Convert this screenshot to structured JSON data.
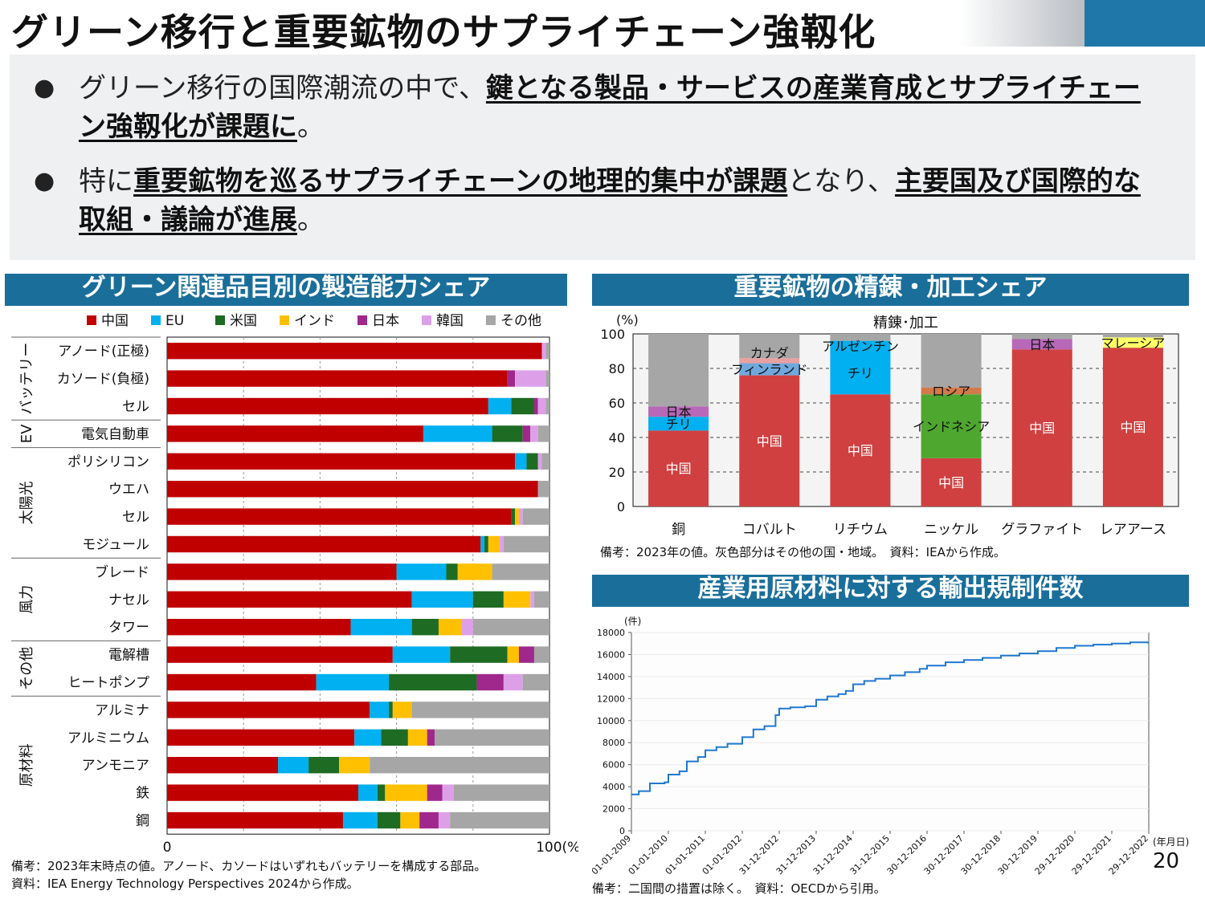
{
  "title": "グリーン移行と重要鉱物のサプライチェーン強靱化",
  "bullets": [
    {
      "plain1": "グリーン移行の国際潮流の中で、",
      "bold1": "鍵となる製品・サービスの産業育成とサプライチェーン強靱化が課題に",
      "plain2": "。",
      "bold2": "",
      "plain3": ""
    },
    {
      "plain1": "特に",
      "bold1": "重要鉱物を巡るサプライチェーンの地理的集中が課題",
      "plain2": "となり、",
      "bold2": "主要国及び国際的な取組・議論が進展",
      "plain3": "。"
    }
  ],
  "left_section": {
    "heading": "グリーン関連品目別の製造能力シェア",
    "note1": "備考：2023年末時点の値。アノード、カソードはいずれもバッテリーを構成する部品。",
    "note2": "資料：IEA Energy Technology Perspectives 2024から作成。"
  },
  "right_top_section": {
    "heading": "重要鉱物の精錬・加工シェア",
    "note": "備考：2023年の値。灰色部分はその他の国・地域。　資料：IEAから作成。"
  },
  "right_bottom_section": {
    "heading": "産業用原材料に対する輸出規制件数",
    "note": "備考：二国間の措置は除く。　資料：OECDから引用。"
  },
  "page_number": "20",
  "chart_data": [
    {
      "type": "bar",
      "orientation": "horizontal",
      "stacked": true,
      "legend_position": "top",
      "x_min_label": "0",
      "x_max_label": "100(%)",
      "xlim": [
        0,
        100
      ],
      "categories": [
        "アノード(正極)",
        "カソード(負極)",
        "セル",
        "電気自動車",
        "ポリシリコン",
        "ウエハ",
        "セル",
        "モジュール",
        "ブレード",
        "ナセル",
        "タワー",
        "電解槽",
        "ヒートポンプ",
        "アルミナ",
        "アルミニウム",
        "アンモニア",
        "鉄",
        "鋼"
      ],
      "groups": [
        {
          "name": "バッテリー",
          "count": 3
        },
        {
          "name": "EV",
          "count": 1
        },
        {
          "name": "太陽光",
          "count": 4
        },
        {
          "name": "風力",
          "count": 3
        },
        {
          "name": "その他",
          "count": 2
        },
        {
          "name": "原材料",
          "count": 5
        }
      ],
      "series": [
        {
          "name": "中国",
          "color": "#c00000",
          "values": [
            98,
            89,
            84,
            67,
            91,
            97,
            90,
            82,
            60,
            64,
            48,
            59,
            39,
            53,
            49,
            29,
            50,
            46
          ]
        },
        {
          "name": "EU",
          "color": "#00b0f0",
          "values": [
            0,
            0,
            6,
            18,
            3,
            0,
            0,
            1,
            13,
            16,
            16,
            15,
            19,
            5,
            7,
            8,
            5,
            9
          ]
        },
        {
          "name": "米国",
          "color": "#1e6b24",
          "values": [
            0,
            0,
            6,
            8,
            3,
            0,
            1,
            1,
            3,
            8,
            7,
            15,
            23,
            1,
            7,
            8,
            2,
            6
          ]
        },
        {
          "name": "インド",
          "color": "#ffc000",
          "values": [
            0,
            0,
            0,
            0,
            0,
            0,
            1,
            3,
            9,
            7,
            6,
            3,
            0,
            5,
            5,
            8,
            11,
            5
          ]
        },
        {
          "name": "日本",
          "color": "#a0288c",
          "values": [
            0,
            2,
            1,
            2,
            0,
            0,
            0,
            0,
            0,
            0,
            0,
            4,
            7,
            0,
            2,
            0,
            4,
            5
          ]
        },
        {
          "name": "韓国",
          "color": "#dda0e8",
          "values": [
            1,
            8,
            2,
            2,
            1,
            0,
            1,
            1,
            0,
            1,
            3,
            0,
            5,
            0,
            0,
            0,
            3,
            3
          ]
        },
        {
          "name": "その他",
          "color": "#a6a6a6",
          "values": [
            1,
            1,
            1,
            3,
            2,
            3,
            7,
            12,
            15,
            4,
            20,
            4,
            7,
            36,
            30,
            47,
            25,
            26
          ]
        }
      ]
    },
    {
      "type": "bar",
      "stacked": true,
      "title": "精錬･加工",
      "ylabel": "(%)",
      "ylim": [
        0,
        100
      ],
      "yticks": [
        0,
        20,
        40,
        60,
        80,
        100
      ],
      "categories": [
        "銅",
        "コバルト",
        "リチウム",
        "ニッケル",
        "グラファイト",
        "レアアース"
      ],
      "stacks": [
        [
          {
            "label": "中国",
            "value": 44,
            "color": "#d04040"
          },
          {
            "label": "チリ",
            "value": 8,
            "color": "#00b0f0"
          },
          {
            "label": "日本",
            "value": 6,
            "color": "#b868b8"
          },
          {
            "label": "",
            "value": 42,
            "color": "#a6a6a6"
          }
        ],
        [
          {
            "label": "中国",
            "value": 76,
            "color": "#d04040"
          },
          {
            "label": "フィンランド",
            "value": 7,
            "color": "#6fa8dc"
          },
          {
            "label": "カナダ",
            "value": 3,
            "color": "#e8a0a0"
          },
          {
            "label": "",
            "value": 14,
            "color": "#a6a6a6"
          }
        ],
        [
          {
            "label": "中国",
            "value": 65,
            "color": "#d04040"
          },
          {
            "label": "チリ",
            "value": 25,
            "color": "#00b0f0"
          },
          {
            "label": "アルゼンチン",
            "value": 6,
            "color": "#00b0f0"
          },
          {
            "label": "",
            "value": 4,
            "color": "#a6a6a6"
          }
        ],
        [
          {
            "label": "中国",
            "value": 28,
            "color": "#d04040"
          },
          {
            "label": "インドネシア",
            "value": 37,
            "color": "#4ea72e"
          },
          {
            "label": "ロシア",
            "value": 4,
            "color": "#d27a4a"
          },
          {
            "label": "",
            "value": 31,
            "color": "#a6a6a6"
          }
        ],
        [
          {
            "label": "中国",
            "value": 91,
            "color": "#d04040"
          },
          {
            "label": "日本",
            "value": 6,
            "color": "#b868b8"
          },
          {
            "label": "",
            "value": 3,
            "color": "#a6a6a6"
          }
        ],
        [
          {
            "label": "中国",
            "value": 92,
            "color": "#d04040"
          },
          {
            "label": "マレーシア",
            "value": 6,
            "color": "#ffff66"
          },
          {
            "label": "",
            "value": 2,
            "color": "#a6a6a6"
          }
        ]
      ]
    },
    {
      "type": "line",
      "ylabel": "(件)",
      "xlabel": "(年月日)",
      "ylim": [
        0,
        18000
      ],
      "yticks": [
        0,
        2000,
        4000,
        6000,
        8000,
        10000,
        12000,
        14000,
        16000,
        18000
      ],
      "xticks": [
        "01-01-2009",
        "01-01-2010",
        "01-01-2011",
        "01-01-2012",
        "31-12-2012",
        "31-12-2013",
        "31-12-2014",
        "31-12-2015",
        "30-12-2016",
        "30-12-2017",
        "30-12-2018",
        "30-12-2019",
        "29-12-2020",
        "29-12-2021",
        "29-12-2022"
      ],
      "line_color": "#1f78d1",
      "series": [
        {
          "x": [
            2009.0,
            2009.2,
            2009.5,
            2009.9,
            2010.0,
            2010.3,
            2010.5,
            2010.8,
            2011.0,
            2011.3,
            2011.6,
            2012.0,
            2012.3,
            2012.6,
            2012.9,
            2013.0,
            2013.3,
            2013.7,
            2014.0,
            2014.3,
            2014.6,
            2014.8,
            2015.0,
            2015.3,
            2015.6,
            2016.0,
            2016.4,
            2016.8,
            2017.0,
            2017.5,
            2018.0,
            2018.5,
            2019.0,
            2019.5,
            2020.0,
            2020.5,
            2021.0,
            2021.5,
            2022.0,
            2022.5,
            2022.99
          ],
          "y": [
            3300,
            3600,
            4300,
            4400,
            5100,
            5400,
            6300,
            6700,
            7300,
            7600,
            7900,
            8500,
            9200,
            9500,
            10500,
            11100,
            11200,
            11300,
            11900,
            12200,
            12400,
            12700,
            13300,
            13600,
            13800,
            14100,
            14400,
            14700,
            15000,
            15300,
            15500,
            15700,
            15900,
            16100,
            16300,
            16600,
            16800,
            16900,
            17000,
            17100,
            17000
          ]
        }
      ]
    }
  ]
}
